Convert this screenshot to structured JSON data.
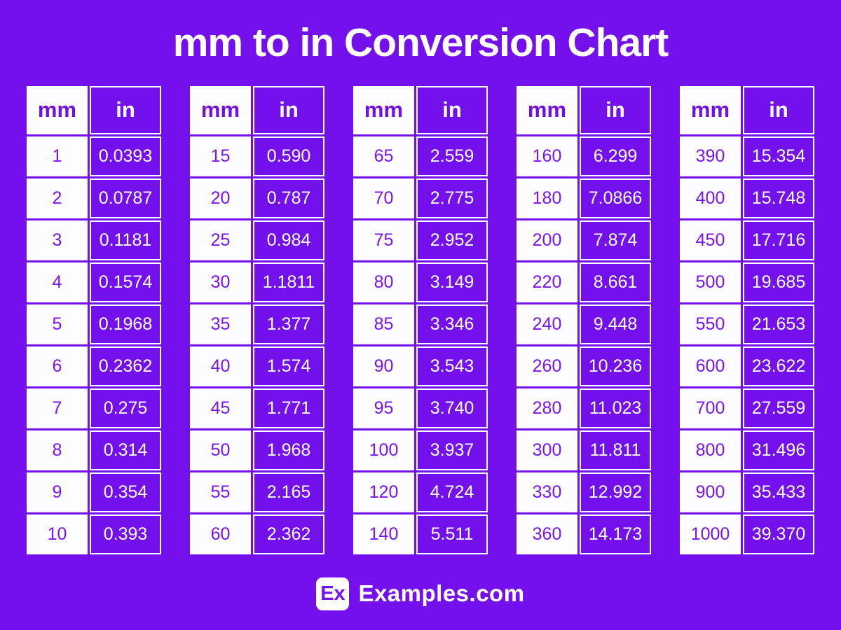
{
  "title": "mm to in Conversion Chart",
  "colors": {
    "background": "#7410EC",
    "cell_white": "#FDFCFF",
    "purple_text": "#7B14F0",
    "white_text": "#FFFFFF"
  },
  "chart_data": {
    "type": "table",
    "title": "mm to in Conversion Chart",
    "columns": [
      "mm",
      "in"
    ],
    "groups": [
      {
        "rows": [
          [
            "1",
            "0.0393"
          ],
          [
            "2",
            "0.0787"
          ],
          [
            "3",
            "0.1181"
          ],
          [
            "4",
            "0.1574"
          ],
          [
            "5",
            "0.1968"
          ],
          [
            "6",
            "0.2362"
          ],
          [
            "7",
            "0.275"
          ],
          [
            "8",
            "0.314"
          ],
          [
            "9",
            "0.354"
          ],
          [
            "10",
            "0.393"
          ]
        ]
      },
      {
        "rows": [
          [
            "15",
            "0.590"
          ],
          [
            "20",
            "0.787"
          ],
          [
            "25",
            "0.984"
          ],
          [
            "30",
            "1.1811"
          ],
          [
            "35",
            "1.377"
          ],
          [
            "40",
            "1.574"
          ],
          [
            "45",
            "1.771"
          ],
          [
            "50",
            "1.968"
          ],
          [
            "55",
            "2.165"
          ],
          [
            "60",
            "2.362"
          ]
        ]
      },
      {
        "rows": [
          [
            "65",
            "2.559"
          ],
          [
            "70",
            "2.775"
          ],
          [
            "75",
            "2.952"
          ],
          [
            "80",
            "3.149"
          ],
          [
            "85",
            "3.346"
          ],
          [
            "90",
            "3.543"
          ],
          [
            "95",
            "3.740"
          ],
          [
            "100",
            "3.937"
          ],
          [
            "120",
            "4.724"
          ],
          [
            "140",
            "5.511"
          ]
        ]
      },
      {
        "rows": [
          [
            "160",
            "6.299"
          ],
          [
            "180",
            "7.0866"
          ],
          [
            "200",
            "7.874"
          ],
          [
            "220",
            "8.661"
          ],
          [
            "240",
            "9.448"
          ],
          [
            "260",
            "10.236"
          ],
          [
            "280",
            "11.023"
          ],
          [
            "300",
            "11.811"
          ],
          [
            "330",
            "12.992"
          ],
          [
            "360",
            "14.173"
          ]
        ]
      },
      {
        "rows": [
          [
            "390",
            "15.354"
          ],
          [
            "400",
            "15.748"
          ],
          [
            "450",
            "17.716"
          ],
          [
            "500",
            "19.685"
          ],
          [
            "550",
            "21.653"
          ],
          [
            "600",
            "23.622"
          ],
          [
            "700",
            "27.559"
          ],
          [
            "800",
            "31.496"
          ],
          [
            "900",
            "35.433"
          ],
          [
            "1000",
            "39.370"
          ]
        ]
      }
    ]
  },
  "footer": {
    "logo": "Ex",
    "site": "Examples.com"
  }
}
